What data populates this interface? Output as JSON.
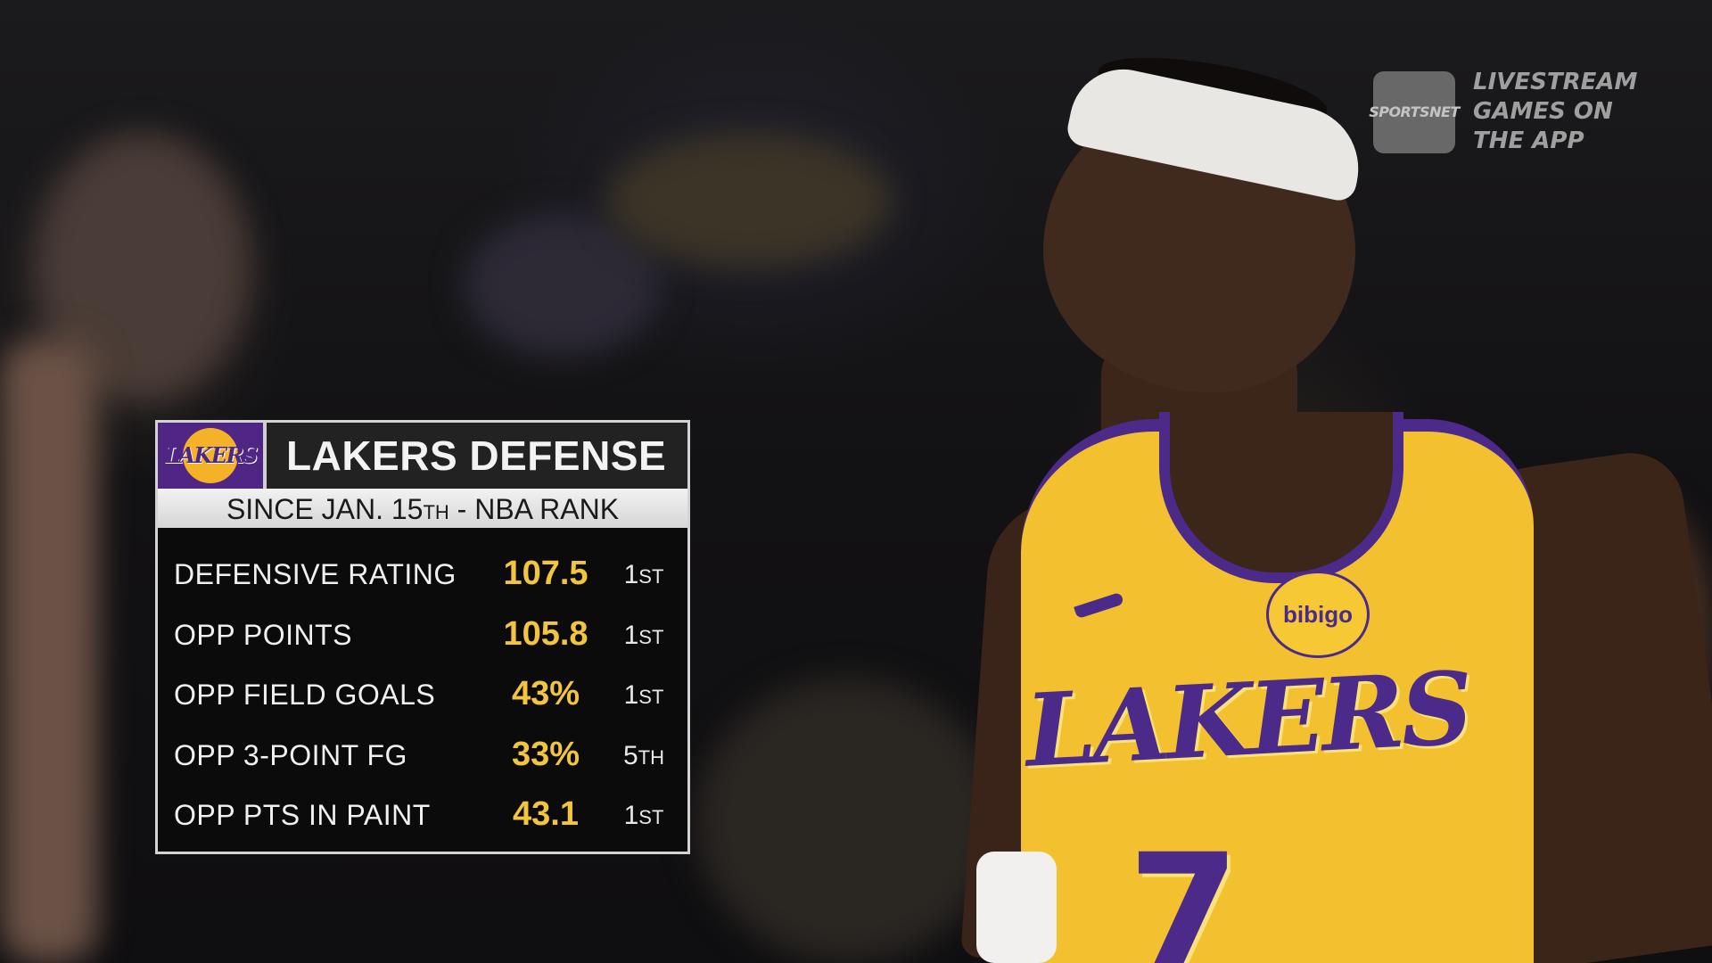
{
  "broadcaster": {
    "logo_text": "SPORTSNET",
    "promo_lines": [
      "LIVESTREAM",
      "GAMES ON",
      "THE APP"
    ]
  },
  "player": {
    "jersey_word": "LAKERS",
    "jersey_number": "7",
    "sponsor": "bibigo"
  },
  "stat_card": {
    "team_logo_text": "LAKERS",
    "title": "LAKERS DEFENSE",
    "subtitle": {
      "prefix": "SINCE JAN. 15",
      "ordinal": "TH",
      "suffix": " - NBA RANK"
    },
    "rows": [
      {
        "label": "DEFENSIVE RATING",
        "value": "107.5",
        "rank_num": "1",
        "rank_ord": "ST"
      },
      {
        "label": "OPP POINTS",
        "value": "105.8",
        "rank_num": "1",
        "rank_ord": "ST"
      },
      {
        "label": "OPP FIELD GOALS",
        "value": "43%",
        "rank_num": "1",
        "rank_ord": "ST"
      },
      {
        "label": "OPP 3-POINT FG",
        "value": "33%",
        "rank_num": "5",
        "rank_ord": "TH"
      },
      {
        "label": "OPP PTS IN PAINT",
        "value": "43.1",
        "rank_num": "1",
        "rank_ord": "ST"
      }
    ],
    "colors": {
      "value": "#f2c53d",
      "team_purple": "#4f2683",
      "team_gold": "#f4b229"
    }
  }
}
